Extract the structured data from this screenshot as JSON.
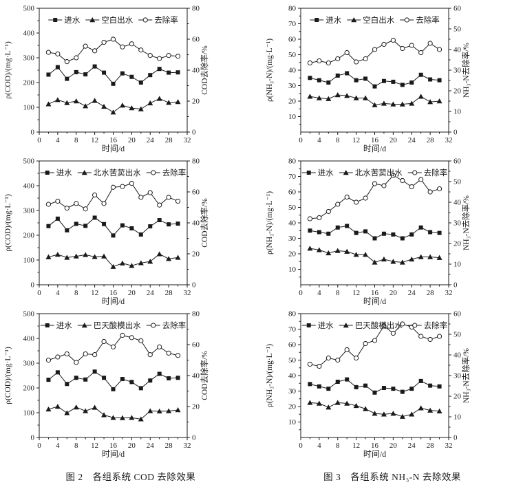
{
  "page": {
    "background": "#ffffff",
    "ink_color": "#1a1a1a"
  },
  "captions": {
    "fig2": "图 2　各组系统 COD 去除效果",
    "fig3": "图 3　各组系统 NH₃-N 去除效果"
  },
  "chart_data": [
    {
      "id": "cod-blank",
      "type": "line",
      "title": "",
      "xlabel": "时间/d",
      "ylabel_left": "ρ(COD)/(mg·L⁻¹)",
      "ylabel_right": "COD去除率/%",
      "xlim": [
        0,
        32
      ],
      "xticks": [
        0,
        4,
        8,
        12,
        16,
        20,
        24,
        28,
        32
      ],
      "ylim_left": [
        0,
        500
      ],
      "yticks_left": [
        0,
        100,
        200,
        300,
        400,
        500
      ],
      "ylim_right": [
        0,
        80
      ],
      "yticks_right": [
        0,
        20,
        40,
        60,
        80
      ],
      "grid": false,
      "legend_position": "top-inside",
      "x": [
        2,
        4,
        6,
        8,
        10,
        12,
        14,
        16,
        18,
        20,
        22,
        24,
        26,
        28,
        30
      ],
      "series": [
        {
          "name": "进水",
          "axis": "left",
          "marker": "square",
          "values": [
            232,
            262,
            215,
            242,
            233,
            265,
            240,
            195,
            237,
            223,
            200,
            230,
            255,
            240,
            241
          ]
        },
        {
          "name": "空白出水",
          "axis": "left",
          "marker": "triangle",
          "values": [
            113,
            130,
            118,
            125,
            105,
            127,
            103,
            80,
            108,
            97,
            93,
            117,
            135,
            119,
            122
          ]
        },
        {
          "name": "去除率",
          "axis": "right",
          "marker": "circle-open",
          "values": [
            51.5,
            50.5,
            45.5,
            48,
            55.5,
            52.5,
            58,
            60,
            55,
            57,
            53,
            49.5,
            47.5,
            49.5,
            49
          ]
        }
      ]
    },
    {
      "id": "nh3-blank",
      "type": "line",
      "title": "",
      "xlabel": "时间/d",
      "ylabel_left": "ρ(NH₃-N)/(mg·L⁻¹)",
      "ylabel_right": "NH₃-N去除率/%",
      "xlim": [
        0,
        32
      ],
      "xticks": [
        0,
        4,
        8,
        12,
        16,
        20,
        24,
        28,
        32
      ],
      "ylim_left": [
        0,
        80
      ],
      "yticks_left": [
        10,
        20,
        30,
        40,
        50,
        60,
        70,
        80
      ],
      "ylim_right": [
        0,
        60
      ],
      "yticks_right": [
        0,
        10,
        20,
        30,
        40,
        50,
        60
      ],
      "grid": false,
      "legend_position": "top-inside",
      "x": [
        2,
        4,
        6,
        8,
        10,
        12,
        14,
        16,
        18,
        20,
        22,
        24,
        26,
        28,
        30
      ],
      "series": [
        {
          "name": "进水",
          "axis": "left",
          "marker": "square",
          "values": [
            35,
            33.5,
            32,
            36.5,
            38,
            33.5,
            34.5,
            29.5,
            33,
            32.5,
            30.5,
            32,
            37,
            34,
            33.5
          ]
        },
        {
          "name": "空白出水",
          "axis": "left",
          "marker": "triangle",
          "values": [
            23,
            22,
            21.5,
            24,
            23.5,
            22,
            22,
            17.5,
            18.5,
            18,
            18,
            18.5,
            23,
            19.5,
            20
          ]
        },
        {
          "name": "去除率",
          "axis": "right",
          "marker": "circle-open",
          "values": [
            33.5,
            34.5,
            33.5,
            35.5,
            38.5,
            34,
            35.5,
            40,
            42.5,
            44.5,
            40.5,
            42,
            38.5,
            43,
            40
          ]
        }
      ]
    },
    {
      "id": "cod-veronica",
      "type": "line",
      "title": "",
      "xlabel": "时间/d",
      "ylabel_left": "ρ(COD)/(mg·L⁻¹)",
      "ylabel_right": "COD去除率/%",
      "xlim": [
        0,
        32
      ],
      "xticks": [
        0,
        4,
        8,
        12,
        16,
        20,
        24,
        28,
        32
      ],
      "ylim_left": [
        0,
        500
      ],
      "yticks_left": [
        0,
        100,
        200,
        300,
        400,
        500
      ],
      "ylim_right": [
        0,
        80
      ],
      "yticks_right": [
        0,
        20,
        40,
        60,
        80
      ],
      "grid": false,
      "legend_position": "top-inside",
      "x": [
        2,
        4,
        6,
        8,
        10,
        12,
        14,
        16,
        18,
        20,
        22,
        24,
        26,
        28,
        30
      ],
      "series": [
        {
          "name": "进水",
          "axis": "left",
          "marker": "square",
          "values": [
            237,
            267,
            220,
            246,
            238,
            271,
            245,
            199,
            240,
            228,
            203,
            236,
            261,
            244,
            247
          ]
        },
        {
          "name": "北水苦荬出水",
          "axis": "left",
          "marker": "triangle",
          "values": [
            112,
            122,
            110,
            115,
            121,
            113,
            115,
            73,
            87,
            77,
            88,
            94,
            124,
            105,
            110
          ]
        },
        {
          "name": "去除率",
          "axis": "right",
          "marker": "circle-open",
          "values": [
            52,
            54,
            49.5,
            52.5,
            49,
            58,
            52.5,
            63,
            63.5,
            65.5,
            56.5,
            59.5,
            51.5,
            56.5,
            54
          ]
        }
      ]
    },
    {
      "id": "nh3-veronica",
      "type": "line",
      "title": "",
      "xlabel": "时间/d",
      "ylabel_left": "ρ(NH₃-N)/(mg·L⁻¹)",
      "ylabel_right": "NH₃-N去除率/%",
      "xlim": [
        0,
        32
      ],
      "xticks": [
        0,
        4,
        8,
        12,
        16,
        20,
        24,
        28,
        32
      ],
      "ylim_left": [
        0,
        80
      ],
      "yticks_left": [
        10,
        20,
        30,
        40,
        50,
        60,
        70,
        80
      ],
      "ylim_right": [
        0,
        60
      ],
      "yticks_right": [
        0,
        10,
        20,
        30,
        40,
        50,
        60
      ],
      "grid": false,
      "legend_position": "top-inside",
      "x": [
        2,
        4,
        6,
        8,
        10,
        12,
        14,
        16,
        18,
        20,
        22,
        24,
        26,
        28,
        30
      ],
      "series": [
        {
          "name": "进水",
          "axis": "left",
          "marker": "square",
          "values": [
            35,
            34,
            33,
            37,
            38,
            33.5,
            34.5,
            30,
            33,
            32.5,
            30,
            32.5,
            37,
            34,
            33.5
          ]
        },
        {
          "name": "北水苦荬出水",
          "axis": "left",
          "marker": "triangle",
          "values": [
            23.5,
            22.5,
            20.5,
            22,
            21.5,
            19.5,
            19.5,
            14.5,
            16.5,
            15,
            14.5,
            16.5,
            18,
            18,
            17.5
          ]
        },
        {
          "name": "去除率",
          "axis": "right",
          "marker": "circle-open",
          "values": [
            32,
            32.5,
            35.5,
            39,
            42.5,
            40,
            42,
            49,
            48,
            53,
            50.5,
            47.5,
            51,
            45,
            46.5
          ]
        }
      ]
    },
    {
      "id": "cod-rumex",
      "type": "line",
      "title": "",
      "xlabel": "时间/d",
      "ylabel_left": "ρ(COD)/(mg·L⁻¹)",
      "ylabel_right": "COD去除率/%",
      "xlim": [
        0,
        32
      ],
      "xticks": [
        0,
        4,
        8,
        12,
        16,
        20,
        24,
        28,
        32
      ],
      "ylim_left": [
        0,
        500
      ],
      "yticks_left": [
        0,
        100,
        200,
        300,
        400,
        500
      ],
      "ylim_right": [
        0,
        80
      ],
      "yticks_right": [
        0,
        20,
        40,
        60,
        80
      ],
      "grid": false,
      "legend_position": "top-inside",
      "x": [
        2,
        4,
        6,
        8,
        10,
        12,
        14,
        16,
        18,
        20,
        22,
        24,
        26,
        28,
        30
      ],
      "series": [
        {
          "name": "进水",
          "axis": "left",
          "marker": "square",
          "values": [
            233,
            263,
            216,
            241,
            234,
            266,
            241,
            195,
            236,
            224,
            199,
            230,
            257,
            239,
            241
          ]
        },
        {
          "name": "巴天酸模出水",
          "axis": "left",
          "marker": "triangle",
          "values": [
            114,
            125,
            99,
            122,
            107,
            121,
            91,
            80,
            79,
            80,
            74,
            107,
            106,
            107,
            111
          ]
        },
        {
          "name": "去除率",
          "axis": "right",
          "marker": "circle-open",
          "values": [
            50,
            52,
            54,
            48.5,
            54,
            53.5,
            62,
            58.5,
            66,
            64.5,
            62.5,
            53.5,
            58.5,
            54.5,
            53
          ]
        }
      ]
    },
    {
      "id": "nh3-rumex",
      "type": "line",
      "title": "",
      "xlabel": "时间/d",
      "ylabel_left": "ρ(NH₃-N)/(mg·L⁻¹)",
      "ylabel_right": "NH₃-N去除率/%",
      "xlim": [
        0,
        32
      ],
      "xticks": [
        0,
        4,
        8,
        12,
        16,
        20,
        24,
        28,
        32
      ],
      "ylim_left": [
        0,
        80
      ],
      "yticks_left": [
        10,
        20,
        30,
        40,
        50,
        60,
        70,
        80
      ],
      "ylim_right": [
        0,
        60
      ],
      "yticks_right": [
        0,
        10,
        20,
        30,
        40,
        50,
        60
      ],
      "grid": false,
      "legend_position": "top-inside",
      "x": [
        2,
        4,
        6,
        8,
        10,
        12,
        14,
        16,
        18,
        20,
        22,
        24,
        26,
        28,
        30
      ],
      "series": [
        {
          "name": "进水",
          "axis": "left",
          "marker": "square",
          "values": [
            34.5,
            33,
            31.5,
            36,
            37.5,
            32.5,
            33.5,
            29,
            32,
            31.5,
            29.5,
            31.5,
            36.5,
            33.5,
            33
          ]
        },
        {
          "name": "巴天酸模出水",
          "axis": "left",
          "marker": "triangle",
          "values": [
            22.5,
            22,
            19.5,
            22.5,
            22,
            20.5,
            18.5,
            15.5,
            15,
            15.5,
            13.5,
            15,
            19,
            17.5,
            17
          ]
        },
        {
          "name": "去除率",
          "axis": "right",
          "marker": "circle-open",
          "values": [
            35.5,
            34.5,
            38.5,
            37.5,
            42.5,
            38.5,
            45.5,
            47,
            54,
            50.5,
            55,
            53.5,
            49,
            47.5,
            49
          ]
        }
      ]
    }
  ]
}
